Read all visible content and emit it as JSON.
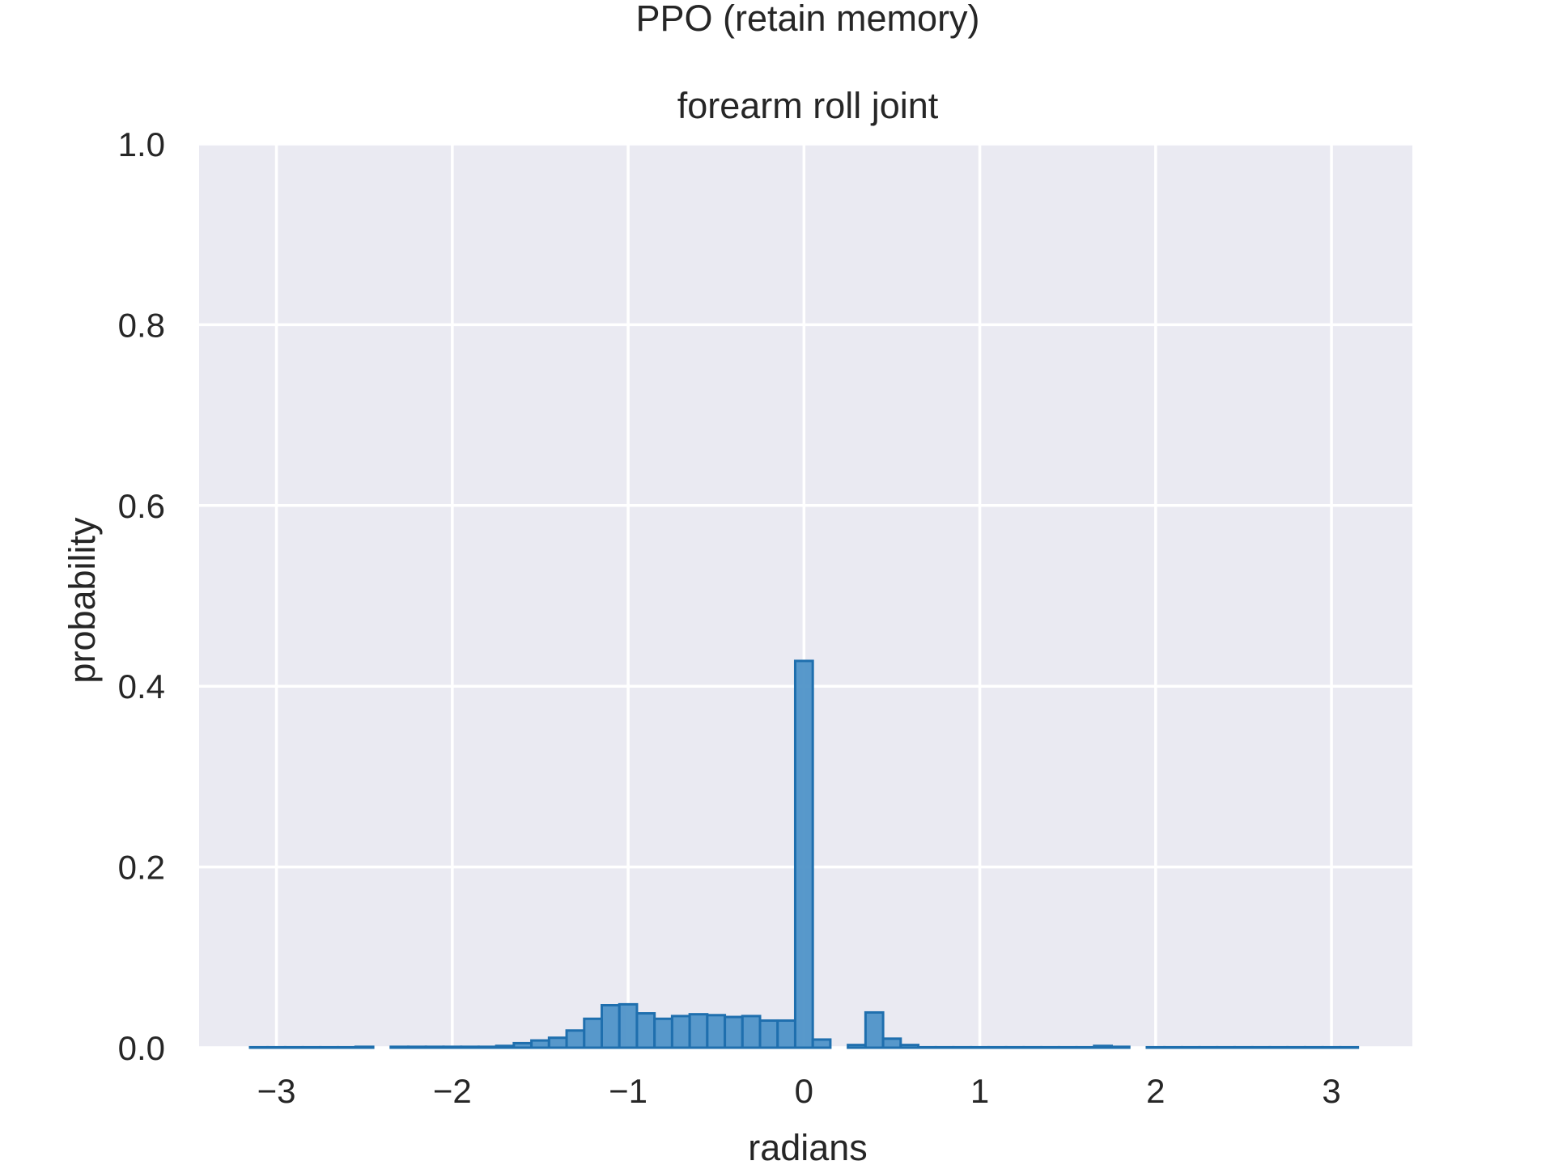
{
  "figure_title": "PPO (retain memory)",
  "colors": {
    "plot_bg": "#eaeaf2",
    "grid": "#ffffff",
    "bar_fill": "#4f94c8",
    "bar_edge": "#1f6fae"
  },
  "chart_data": {
    "type": "bar",
    "title": "forearm roll joint",
    "xlabel": "radians",
    "ylabel": "probability",
    "xlim": [
      -3.44,
      3.46
    ],
    "ylim": [
      0,
      1.0
    ],
    "xticks": [
      -3,
      -2,
      -1,
      0,
      1,
      2,
      3
    ],
    "xtick_labels": [
      "−3",
      "−2",
      "−1",
      "0",
      "1",
      "2",
      "3"
    ],
    "yticks": [
      0.0,
      0.2,
      0.4,
      0.6,
      0.8,
      1.0
    ],
    "ytick_labels": [
      "0.0",
      "0.2",
      "0.4",
      "0.6",
      "0.8",
      "1.0"
    ],
    "grid": true,
    "bin_width": 0.1,
    "x": [
      -3.1,
      -3.0,
      -2.9,
      -2.8,
      -2.7,
      -2.6,
      -2.5,
      -2.4,
      -2.3,
      -2.2,
      -2.1,
      -2.0,
      -1.9,
      -1.8,
      -1.7,
      -1.6,
      -1.5,
      -1.4,
      -1.3,
      -1.2,
      -1.1,
      -1.0,
      -0.9,
      -0.8,
      -0.7,
      -0.6,
      -0.5,
      -0.4,
      -0.3,
      -0.2,
      -0.1,
      0.0,
      0.1,
      0.2,
      0.3,
      0.4,
      0.5,
      0.6,
      0.7,
      0.8,
      0.9,
      1.0,
      1.1,
      1.2,
      1.3,
      1.4,
      1.5,
      1.6,
      1.7,
      1.8,
      1.9,
      2.0,
      2.1,
      2.2,
      2.3,
      2.4,
      2.5,
      2.6,
      2.7,
      2.8,
      2.9,
      3.0,
      3.1
    ],
    "values": [
      0.0005,
      0.0005,
      0.0005,
      0.0005,
      0.0005,
      0.0005,
      0.001,
      0.0,
      0.001,
      0.001,
      0.001,
      0.001,
      0.001,
      0.001,
      0.002,
      0.005,
      0.008,
      0.011,
      0.019,
      0.032,
      0.047,
      0.048,
      0.038,
      0.032,
      0.035,
      0.037,
      0.036,
      0.034,
      0.035,
      0.03,
      0.03,
      0.428,
      0.009,
      0.0,
      0.003,
      0.039,
      0.01,
      0.003,
      0.0005,
      0.0005,
      0.0005,
      0.0005,
      0.0005,
      0.0005,
      0.0005,
      0.0005,
      0.0005,
      0.0005,
      0.002,
      0.001,
      0.0,
      0.0005,
      0.0005,
      0.0005,
      0.0005,
      0.0005,
      0.0005,
      0.0005,
      0.0005,
      0.0005,
      0.0005,
      0.0005,
      0.0005
    ]
  }
}
